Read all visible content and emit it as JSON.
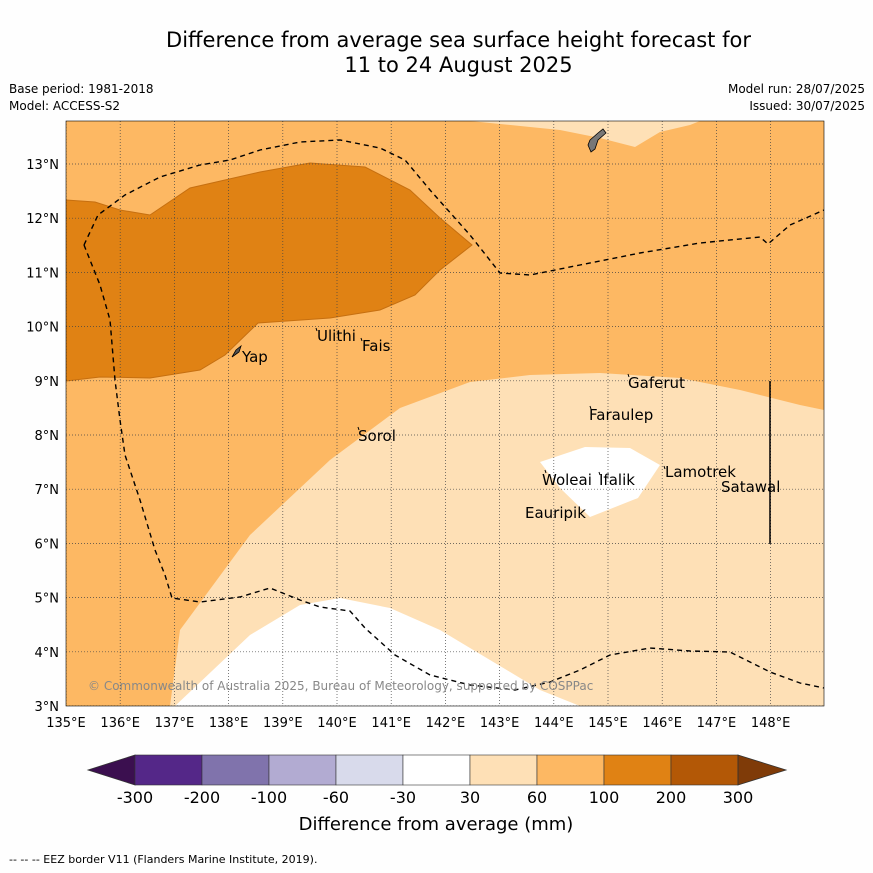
{
  "title_line1": "Difference from average sea surface height forecast for",
  "title_line2": "11 to 24 August 2025",
  "base_period": "Base period: 1981-2018",
  "model": "Model: ACCESS-S2",
  "model_run": "Model run: 28/07/2025",
  "issued": "Issued: 30/07/2025",
  "copyright": "© Commonwealth of Australia 2025, Bureau of Meteorology, supported by COSPPac",
  "x_ticks": [
    "135°E",
    "136°E",
    "137°E",
    "138°E",
    "139°E",
    "140°E",
    "141°E",
    "142°E",
    "143°E",
    "144°E",
    "145°E",
    "146°E",
    "147°E",
    "148°E"
  ],
  "y_ticks": [
    "13°N",
    "12°N",
    "11°N",
    "10°N",
    "9°N",
    "8°N",
    "7°N",
    "6°N",
    "5°N",
    "4°N",
    "3°N"
  ],
  "places": [
    "Yap",
    "Ulithi",
    "Fais",
    "Gaferut",
    "Faraulep",
    "Sorol",
    "Woleai",
    "Ifalik",
    "Lamotrek",
    "Satawal",
    "Eauripik"
  ],
  "colorbar": {
    "label": "Difference from average (mm)",
    "ticks": [
      "-300",
      "-200",
      "-100",
      "-60",
      "-30",
      "30",
      "60",
      "100",
      "200",
      "300"
    ],
    "colors": [
      "#3b0f4f",
      "#542788",
      "#8073ac",
      "#b2abd2",
      "#d8daeb",
      "#ffffff",
      "#fee0b6",
      "#fdb863",
      "#e08214",
      "#b35806",
      "#7f3b08"
    ]
  },
  "legend_note": "--  --  -- EEZ border V11 (Flanders Marine Institute, 2019)."
}
